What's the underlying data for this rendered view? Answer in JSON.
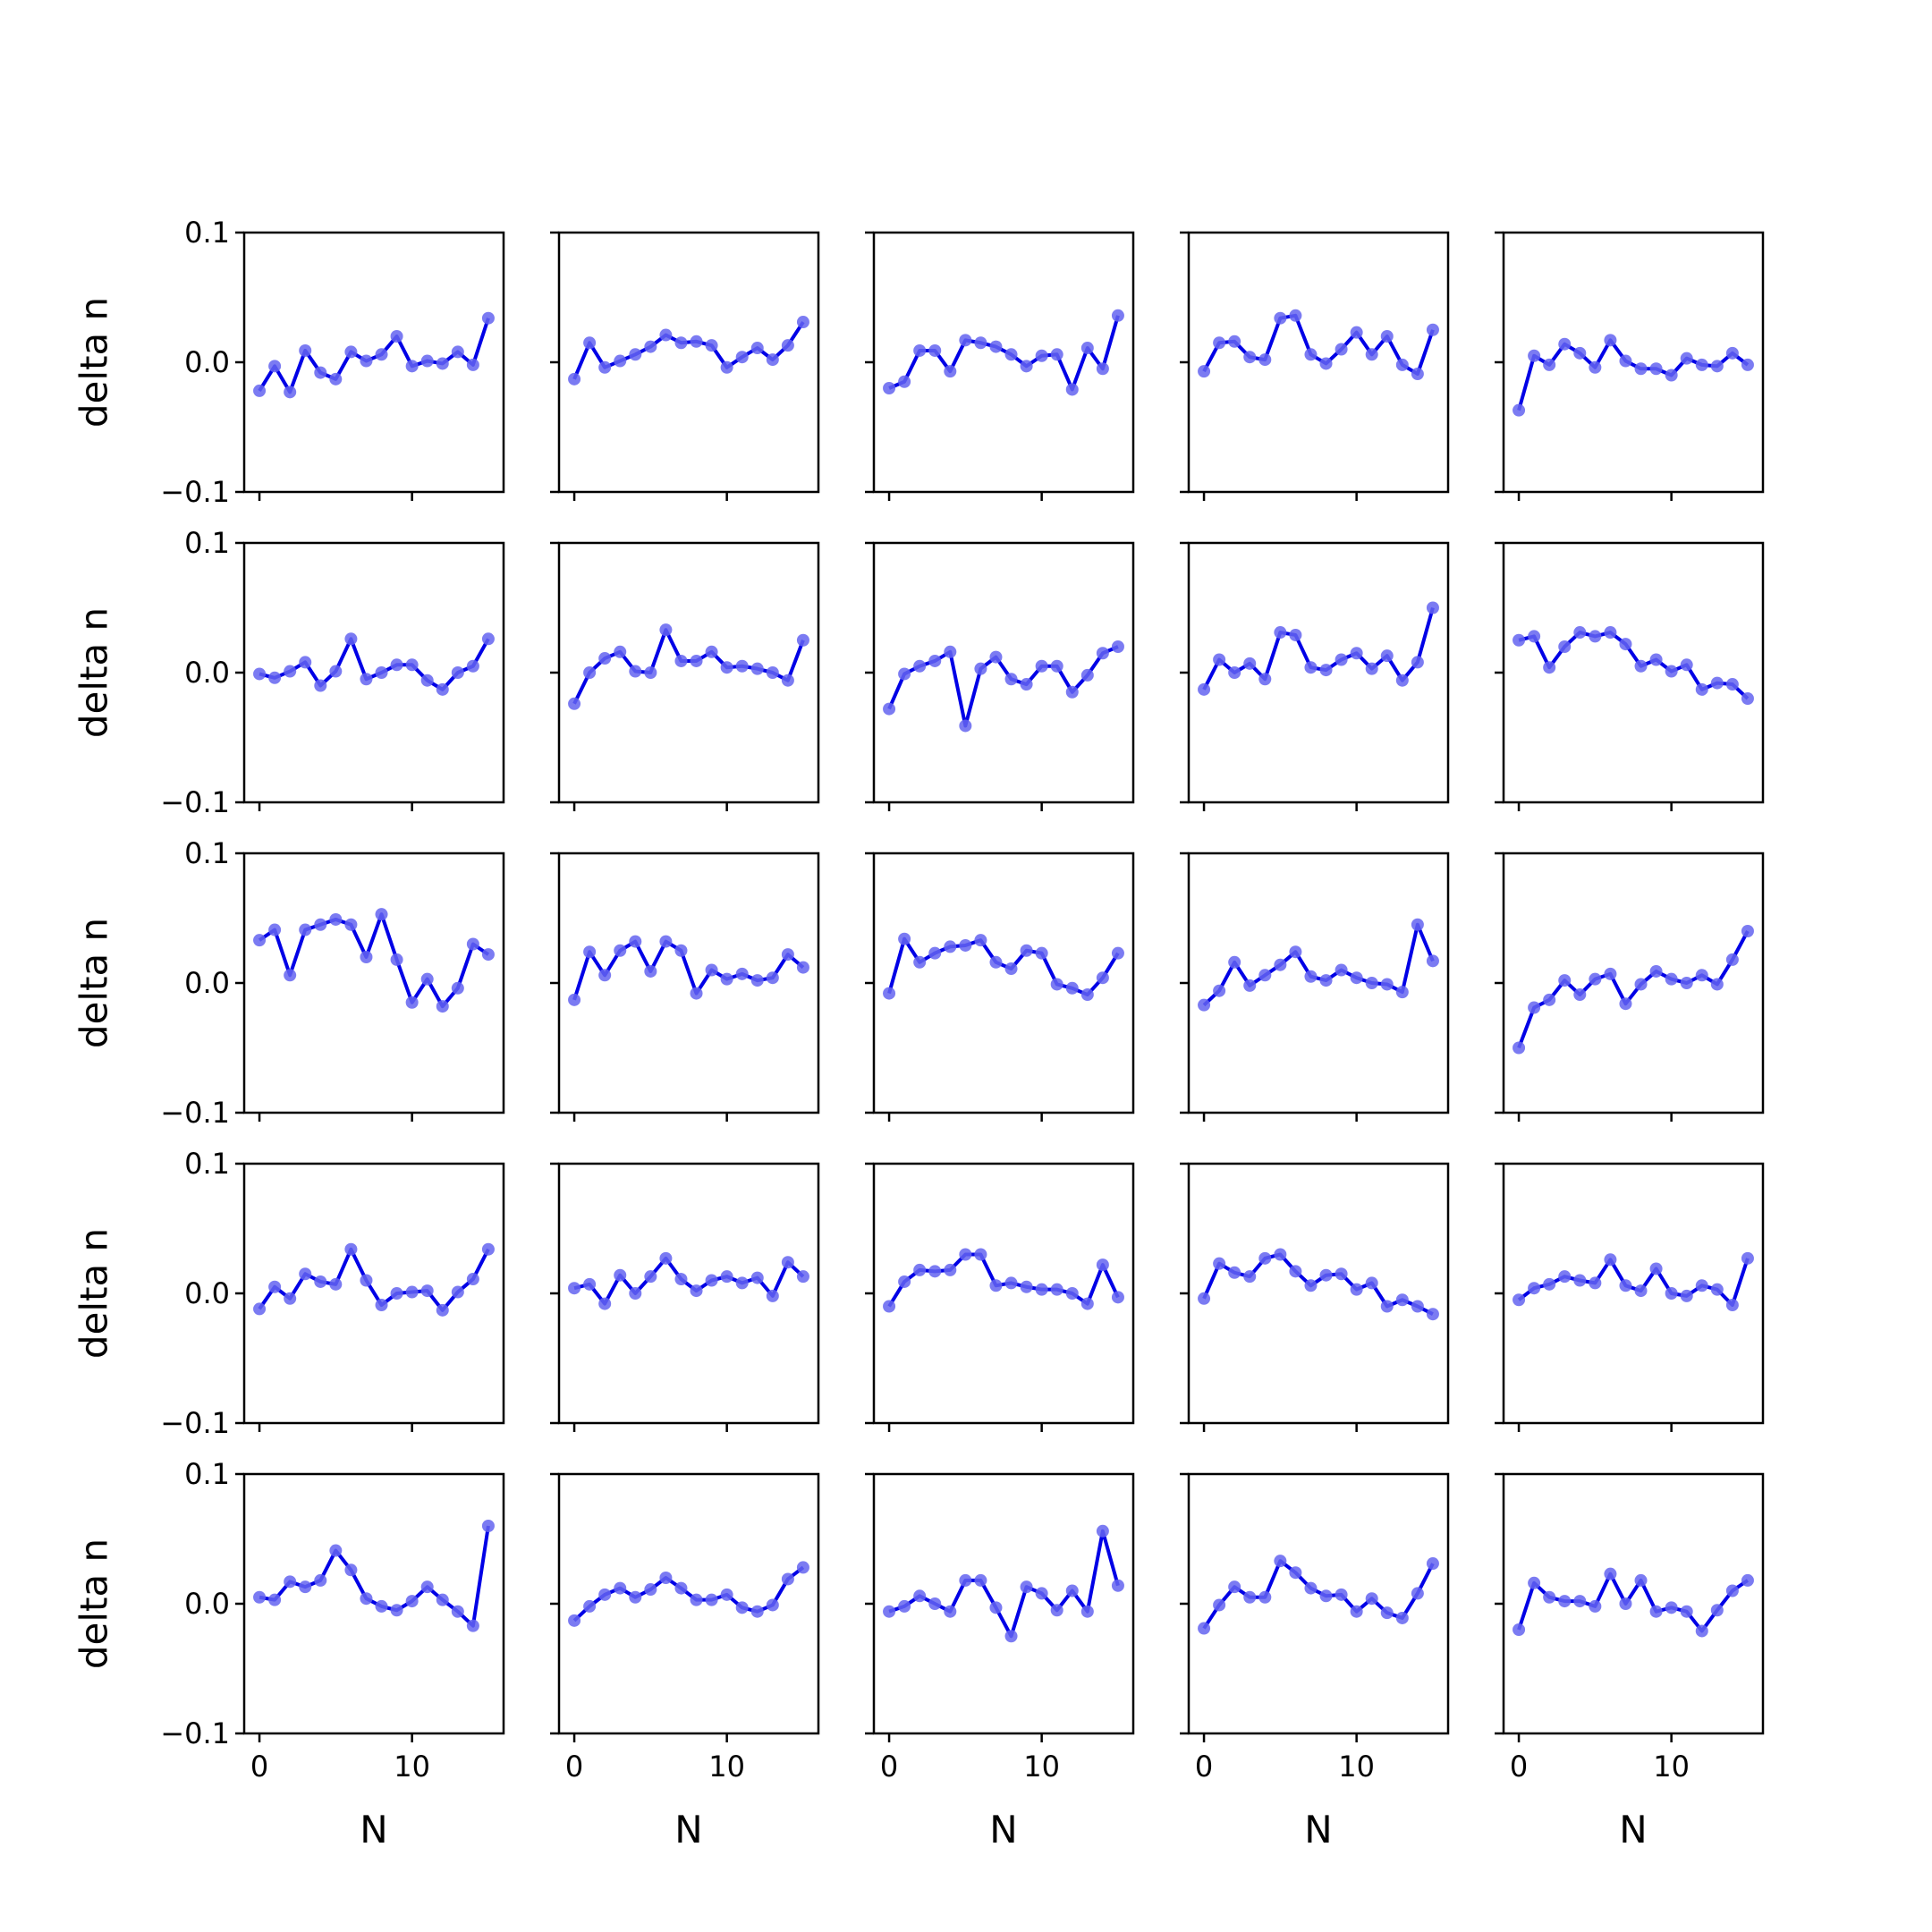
{
  "chart_data": {
    "type": "line",
    "layout": "5x5 grid of line plots with markers",
    "xlabel": "N",
    "ylabel": "delta n",
    "xlim": [
      -1,
      16
    ],
    "ylim": [
      -0.1,
      0.1
    ],
    "x_ticks": [
      0,
      10
    ],
    "x_tick_labels": [
      "0",
      "10"
    ],
    "y_ticks": [
      -0.1,
      0.0,
      0.1
    ],
    "y_tick_labels": [
      "−0.1",
      "0.0",
      "0.1"
    ],
    "grid": false,
    "legend": false,
    "colors": {
      "line": "#0000e6",
      "marker": "#6464f0"
    },
    "x": [
      0,
      1,
      2,
      3,
      4,
      5,
      6,
      7,
      8,
      9,
      10,
      11,
      12,
      13,
      14,
      15
    ],
    "panels": [
      {
        "values": [
          -0.022,
          -0.003,
          -0.023,
          0.009,
          -0.008,
          -0.013,
          0.008,
          0.001,
          0.006,
          0.02,
          -0.003,
          0.001,
          -0.001,
          0.008,
          -0.002,
          0.034
        ]
      },
      {
        "values": [
          -0.013,
          0.015,
          -0.004,
          0.001,
          0.006,
          0.012,
          0.021,
          0.015,
          0.016,
          0.013,
          -0.004,
          0.004,
          0.011,
          0.002,
          0.013,
          0.031
        ]
      },
      {
        "values": [
          -0.02,
          -0.015,
          0.009,
          0.009,
          -0.007,
          0.017,
          0.015,
          0.012,
          0.006,
          -0.003,
          0.005,
          0.006,
          -0.021,
          0.011,
          -0.005,
          0.036
        ]
      },
      {
        "values": [
          -0.007,
          0.015,
          0.016,
          0.004,
          0.002,
          0.034,
          0.036,
          0.006,
          -0.001,
          0.01,
          0.023,
          0.006,
          0.02,
          -0.002,
          -0.009,
          0.025
        ]
      },
      {
        "values": [
          -0.037,
          0.005,
          -0.002,
          0.014,
          0.007,
          -0.004,
          0.017,
          0.001,
          -0.005,
          -0.005,
          -0.01,
          0.003,
          -0.002,
          -0.003,
          0.007,
          -0.002
        ]
      },
      {
        "values": [
          -0.001,
          -0.004,
          0.001,
          0.008,
          -0.01,
          0.001,
          0.026,
          -0.005,
          0.0,
          0.006,
          0.006,
          -0.006,
          -0.013,
          0.0,
          0.005,
          0.026
        ]
      },
      {
        "values": [
          -0.024,
          0.0,
          0.011,
          0.016,
          0.001,
          0.0,
          0.033,
          0.009,
          0.009,
          0.016,
          0.004,
          0.005,
          0.003,
          0.0,
          -0.006,
          0.025
        ]
      },
      {
        "values": [
          -0.028,
          -0.001,
          0.005,
          0.009,
          0.016,
          -0.041,
          0.003,
          0.012,
          -0.005,
          -0.009,
          0.005,
          0.005,
          -0.015,
          -0.002,
          0.015,
          0.02
        ]
      },
      {
        "values": [
          -0.013,
          0.01,
          0.0,
          0.007,
          -0.005,
          0.031,
          0.029,
          0.004,
          0.002,
          0.01,
          0.015,
          0.003,
          0.013,
          -0.006,
          0.008,
          0.05
        ]
      },
      {
        "values": [
          0.025,
          0.028,
          0.004,
          0.02,
          0.031,
          0.028,
          0.031,
          0.022,
          0.005,
          0.01,
          0.001,
          0.006,
          -0.013,
          -0.008,
          -0.009,
          -0.02
        ]
      }
    ]
  },
  "rows": [
    {
      "values": [
        [
          0.033,
          0.041,
          0.006,
          0.041,
          0.045,
          0.049,
          0.045,
          0.02,
          0.053,
          0.018,
          -0.015,
          0.003,
          -0.018,
          -0.004,
          0.03,
          0.022
        ]
      ]
    }
  ]
}
